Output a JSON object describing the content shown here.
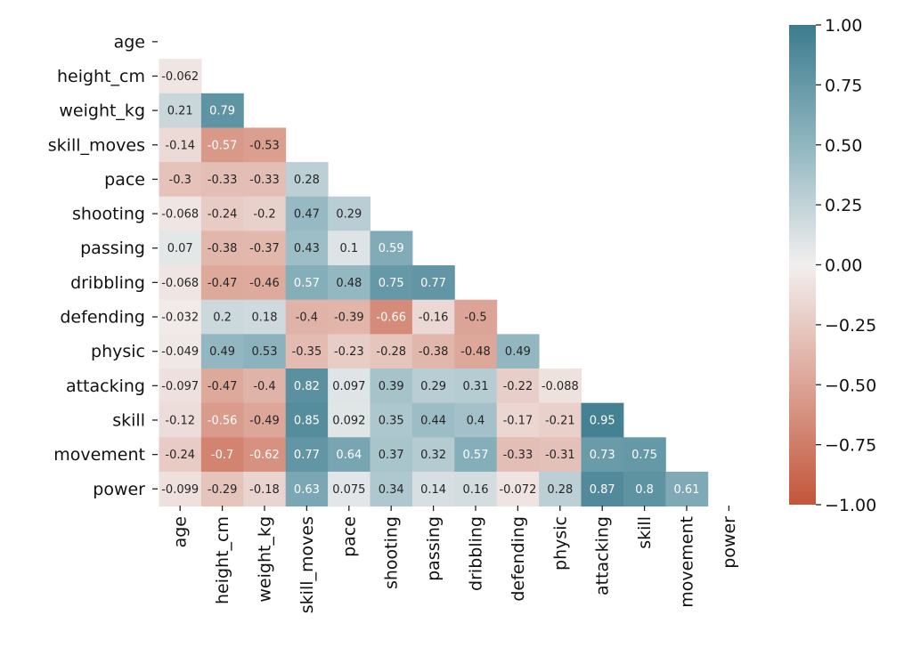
{
  "chart_data": {
    "type": "heatmap",
    "title": "",
    "xlabel": "",
    "ylabel": "",
    "mask": "upper-triangle-including-diagonal",
    "labels": [
      "age",
      "height_cm",
      "weight_kg",
      "skill_moves",
      "pace",
      "shooting",
      "passing",
      "dribbling",
      "defending",
      "physic",
      "attacking",
      "skill",
      "movement",
      "power"
    ],
    "lower_triangle": [
      [],
      [
        -0.062
      ],
      [
        0.21,
        0.79
      ],
      [
        -0.14,
        -0.57,
        -0.53
      ],
      [
        -0.3,
        -0.33,
        -0.33,
        0.28
      ],
      [
        -0.068,
        -0.24,
        -0.2,
        0.47,
        0.29
      ],
      [
        0.07,
        -0.38,
        -0.37,
        0.43,
        0.1,
        0.59
      ],
      [
        -0.068,
        -0.47,
        -0.46,
        0.57,
        0.48,
        0.75,
        0.77
      ],
      [
        -0.032,
        0.2,
        0.18,
        -0.4,
        -0.39,
        -0.66,
        -0.16,
        -0.5
      ],
      [
        -0.049,
        0.49,
        0.53,
        -0.35,
        -0.23,
        -0.28,
        -0.38,
        -0.48,
        0.49
      ],
      [
        -0.097,
        -0.47,
        -0.4,
        0.82,
        0.097,
        0.39,
        0.29,
        0.31,
        -0.22,
        -0.088
      ],
      [
        -0.12,
        -0.56,
        -0.49,
        0.85,
        0.092,
        0.35,
        0.44,
        0.4,
        -0.17,
        -0.21,
        0.95
      ],
      [
        -0.24,
        -0.7,
        -0.62,
        0.77,
        0.64,
        0.37,
        0.32,
        0.57,
        -0.33,
        -0.31,
        0.73,
        0.75
      ],
      [
        -0.099,
        -0.29,
        -0.18,
        0.63,
        0.075,
        0.34,
        0.14,
        0.16,
        -0.072,
        0.28,
        0.87,
        0.8,
        0.61
      ]
    ],
    "colorbar": {
      "range": [
        -1,
        1
      ],
      "ticks": [
        "1.00",
        "0.75",
        "0.50",
        "0.25",
        "0.00",
        "−0.25",
        "−0.50",
        "−0.75",
        "−1.00"
      ],
      "tick_values": [
        1,
        0.75,
        0.5,
        0.25,
        0,
        -0.25,
        -0.5,
        -0.75,
        -1
      ]
    },
    "colors": {
      "negative": "#c3553a",
      "neg_mid": "#dca496",
      "center": "#f2efef",
      "pos_mid": "#90b6c0",
      "positive": "#3c7b8e"
    }
  }
}
